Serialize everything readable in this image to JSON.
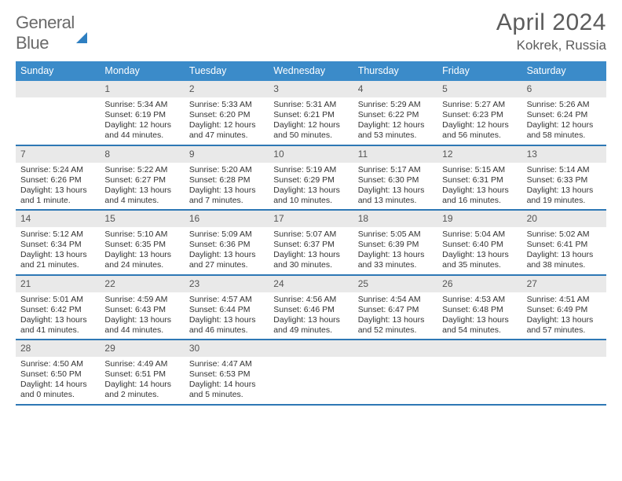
{
  "logo": {
    "part1": "General",
    "part2": "Blue"
  },
  "title": {
    "month": "April 2024",
    "location": "Kokrek, Russia"
  },
  "colors": {
    "header_bg": "#3b8bc9",
    "header_text": "#ffffff",
    "week_divider": "#2e78b5",
    "daynum_bg": "#e9e9e9",
    "text": "#333333",
    "title_text": "#5c5c5c",
    "logo_accent": "#2e7fc1"
  },
  "calendar": {
    "day_headers": [
      "Sunday",
      "Monday",
      "Tuesday",
      "Wednesday",
      "Thursday",
      "Friday",
      "Saturday"
    ],
    "daynum_fontsize": 12,
    "cell_fontsize": 10.5,
    "header_fontsize": 12.5,
    "weeks": [
      [
        {
          "n": "",
          "sr": "",
          "ss": "",
          "dl": ""
        },
        {
          "n": "1",
          "sr": "Sunrise: 5:34 AM",
          "ss": "Sunset: 6:19 PM",
          "dl": "Daylight: 12 hours and 44 minutes."
        },
        {
          "n": "2",
          "sr": "Sunrise: 5:33 AM",
          "ss": "Sunset: 6:20 PM",
          "dl": "Daylight: 12 hours and 47 minutes."
        },
        {
          "n": "3",
          "sr": "Sunrise: 5:31 AM",
          "ss": "Sunset: 6:21 PM",
          "dl": "Daylight: 12 hours and 50 minutes."
        },
        {
          "n": "4",
          "sr": "Sunrise: 5:29 AM",
          "ss": "Sunset: 6:22 PM",
          "dl": "Daylight: 12 hours and 53 minutes."
        },
        {
          "n": "5",
          "sr": "Sunrise: 5:27 AM",
          "ss": "Sunset: 6:23 PM",
          "dl": "Daylight: 12 hours and 56 minutes."
        },
        {
          "n": "6",
          "sr": "Sunrise: 5:26 AM",
          "ss": "Sunset: 6:24 PM",
          "dl": "Daylight: 12 hours and 58 minutes."
        }
      ],
      [
        {
          "n": "7",
          "sr": "Sunrise: 5:24 AM",
          "ss": "Sunset: 6:26 PM",
          "dl": "Daylight: 13 hours and 1 minute."
        },
        {
          "n": "8",
          "sr": "Sunrise: 5:22 AM",
          "ss": "Sunset: 6:27 PM",
          "dl": "Daylight: 13 hours and 4 minutes."
        },
        {
          "n": "9",
          "sr": "Sunrise: 5:20 AM",
          "ss": "Sunset: 6:28 PM",
          "dl": "Daylight: 13 hours and 7 minutes."
        },
        {
          "n": "10",
          "sr": "Sunrise: 5:19 AM",
          "ss": "Sunset: 6:29 PM",
          "dl": "Daylight: 13 hours and 10 minutes."
        },
        {
          "n": "11",
          "sr": "Sunrise: 5:17 AM",
          "ss": "Sunset: 6:30 PM",
          "dl": "Daylight: 13 hours and 13 minutes."
        },
        {
          "n": "12",
          "sr": "Sunrise: 5:15 AM",
          "ss": "Sunset: 6:31 PM",
          "dl": "Daylight: 13 hours and 16 minutes."
        },
        {
          "n": "13",
          "sr": "Sunrise: 5:14 AM",
          "ss": "Sunset: 6:33 PM",
          "dl": "Daylight: 13 hours and 19 minutes."
        }
      ],
      [
        {
          "n": "14",
          "sr": "Sunrise: 5:12 AM",
          "ss": "Sunset: 6:34 PM",
          "dl": "Daylight: 13 hours and 21 minutes."
        },
        {
          "n": "15",
          "sr": "Sunrise: 5:10 AM",
          "ss": "Sunset: 6:35 PM",
          "dl": "Daylight: 13 hours and 24 minutes."
        },
        {
          "n": "16",
          "sr": "Sunrise: 5:09 AM",
          "ss": "Sunset: 6:36 PM",
          "dl": "Daylight: 13 hours and 27 minutes."
        },
        {
          "n": "17",
          "sr": "Sunrise: 5:07 AM",
          "ss": "Sunset: 6:37 PM",
          "dl": "Daylight: 13 hours and 30 minutes."
        },
        {
          "n": "18",
          "sr": "Sunrise: 5:05 AM",
          "ss": "Sunset: 6:39 PM",
          "dl": "Daylight: 13 hours and 33 minutes."
        },
        {
          "n": "19",
          "sr": "Sunrise: 5:04 AM",
          "ss": "Sunset: 6:40 PM",
          "dl": "Daylight: 13 hours and 35 minutes."
        },
        {
          "n": "20",
          "sr": "Sunrise: 5:02 AM",
          "ss": "Sunset: 6:41 PM",
          "dl": "Daylight: 13 hours and 38 minutes."
        }
      ],
      [
        {
          "n": "21",
          "sr": "Sunrise: 5:01 AM",
          "ss": "Sunset: 6:42 PM",
          "dl": "Daylight: 13 hours and 41 minutes."
        },
        {
          "n": "22",
          "sr": "Sunrise: 4:59 AM",
          "ss": "Sunset: 6:43 PM",
          "dl": "Daylight: 13 hours and 44 minutes."
        },
        {
          "n": "23",
          "sr": "Sunrise: 4:57 AM",
          "ss": "Sunset: 6:44 PM",
          "dl": "Daylight: 13 hours and 46 minutes."
        },
        {
          "n": "24",
          "sr": "Sunrise: 4:56 AM",
          "ss": "Sunset: 6:46 PM",
          "dl": "Daylight: 13 hours and 49 minutes."
        },
        {
          "n": "25",
          "sr": "Sunrise: 4:54 AM",
          "ss": "Sunset: 6:47 PM",
          "dl": "Daylight: 13 hours and 52 minutes."
        },
        {
          "n": "26",
          "sr": "Sunrise: 4:53 AM",
          "ss": "Sunset: 6:48 PM",
          "dl": "Daylight: 13 hours and 54 minutes."
        },
        {
          "n": "27",
          "sr": "Sunrise: 4:51 AM",
          "ss": "Sunset: 6:49 PM",
          "dl": "Daylight: 13 hours and 57 minutes."
        }
      ],
      [
        {
          "n": "28",
          "sr": "Sunrise: 4:50 AM",
          "ss": "Sunset: 6:50 PM",
          "dl": "Daylight: 14 hours and 0 minutes."
        },
        {
          "n": "29",
          "sr": "Sunrise: 4:49 AM",
          "ss": "Sunset: 6:51 PM",
          "dl": "Daylight: 14 hours and 2 minutes."
        },
        {
          "n": "30",
          "sr": "Sunrise: 4:47 AM",
          "ss": "Sunset: 6:53 PM",
          "dl": "Daylight: 14 hours and 5 minutes."
        },
        {
          "n": "",
          "sr": "",
          "ss": "",
          "dl": ""
        },
        {
          "n": "",
          "sr": "",
          "ss": "",
          "dl": ""
        },
        {
          "n": "",
          "sr": "",
          "ss": "",
          "dl": ""
        },
        {
          "n": "",
          "sr": "",
          "ss": "",
          "dl": ""
        }
      ]
    ]
  }
}
